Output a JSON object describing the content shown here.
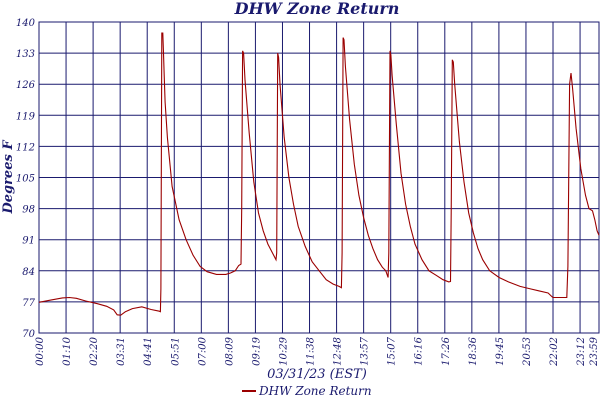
{
  "chart_data": {
    "type": "line",
    "title": "DHW Zone Return",
    "xlabel": "03/31/23 (EST)",
    "ylabel": "Degrees F",
    "ylim": [
      70,
      140
    ],
    "yticks": [
      70,
      77,
      84,
      91,
      98,
      105,
      112,
      119,
      126,
      133,
      140
    ],
    "x_tick_labels": [
      "00:00",
      "01:10",
      "02:20",
      "03:31",
      "04:41",
      "05:51",
      "07:00",
      "08:09",
      "09:19",
      "10:29",
      "11:38",
      "12:48",
      "13:57",
      "15:07",
      "16:16",
      "17:26",
      "18:36",
      "19:45",
      "20:53",
      "22:02",
      "23:12",
      "23:59"
    ],
    "xlim_hours": [
      0,
      23.98
    ],
    "grid": true,
    "legend_position": "bottom-center",
    "series": [
      {
        "name": "DHW Zone Return",
        "color": "#9b0000",
        "points": [
          [
            0.0,
            76.9
          ],
          [
            0.5,
            77.4
          ],
          [
            1.0,
            77.9
          ],
          [
            1.3,
            78.0
          ],
          [
            1.6,
            77.8
          ],
          [
            2.0,
            77.2
          ],
          [
            2.5,
            76.6
          ],
          [
            2.9,
            76.0
          ],
          [
            3.2,
            75.2
          ],
          [
            3.35,
            74.1
          ],
          [
            3.5,
            74.0
          ],
          [
            3.7,
            74.8
          ],
          [
            4.0,
            75.5
          ],
          [
            4.4,
            75.9
          ],
          [
            4.8,
            75.3
          ],
          [
            5.15,
            74.9
          ],
          [
            5.2,
            74.8
          ],
          [
            5.22,
            80.0
          ],
          [
            5.26,
            137.5
          ],
          [
            5.3,
            137.5
          ],
          [
            5.33,
            133.0
          ],
          [
            5.36,
            128.0
          ],
          [
            5.4,
            122.0
          ],
          [
            5.5,
            114.0
          ],
          [
            5.7,
            103.0
          ],
          [
            6.0,
            95.5
          ],
          [
            6.3,
            91.0
          ],
          [
            6.6,
            87.5
          ],
          [
            6.9,
            85.0
          ],
          [
            7.2,
            83.8
          ],
          [
            7.6,
            83.2
          ],
          [
            8.0,
            83.2
          ],
          [
            8.2,
            83.5
          ],
          [
            8.4,
            84.0
          ],
          [
            8.55,
            85.2
          ],
          [
            8.65,
            85.5
          ],
          [
            8.68,
            98.0
          ],
          [
            8.72,
            133.5
          ],
          [
            8.76,
            133.0
          ],
          [
            8.82,
            127.0
          ],
          [
            9.0,
            115.0
          ],
          [
            9.2,
            104.0
          ],
          [
            9.4,
            97.0
          ],
          [
            9.6,
            93.0
          ],
          [
            9.8,
            90.0
          ],
          [
            10.0,
            88.0
          ],
          [
            10.15,
            86.5
          ],
          [
            10.18,
            88.0
          ],
          [
            10.22,
            133.0
          ],
          [
            10.26,
            132.0
          ],
          [
            10.32,
            126.0
          ],
          [
            10.5,
            114.0
          ],
          [
            10.7,
            105.0
          ],
          [
            10.9,
            99.0
          ],
          [
            11.1,
            94.0
          ],
          [
            11.4,
            89.5
          ],
          [
            11.7,
            86.0
          ],
          [
            12.0,
            84.0
          ],
          [
            12.3,
            82.0
          ],
          [
            12.6,
            81.0
          ],
          [
            12.85,
            80.5
          ],
          [
            12.95,
            80.2
          ],
          [
            12.98,
            88.0
          ],
          [
            13.02,
            136.5
          ],
          [
            13.06,
            136.0
          ],
          [
            13.12,
            130.0
          ],
          [
            13.3,
            118.0
          ],
          [
            13.5,
            108.0
          ],
          [
            13.7,
            101.0
          ],
          [
            13.9,
            96.0
          ],
          [
            14.1,
            92.0
          ],
          [
            14.3,
            89.0
          ],
          [
            14.5,
            86.5
          ],
          [
            14.7,
            84.8
          ],
          [
            14.85,
            84.0
          ],
          [
            14.95,
            82.5
          ],
          [
            14.98,
            88.0
          ],
          [
            15.03,
            133.5
          ],
          [
            15.07,
            132.5
          ],
          [
            15.12,
            128.0
          ],
          [
            15.3,
            117.0
          ],
          [
            15.5,
            106.0
          ],
          [
            15.7,
            99.0
          ],
          [
            15.9,
            94.0
          ],
          [
            16.1,
            90.0
          ],
          [
            16.4,
            86.5
          ],
          [
            16.7,
            84.0
          ],
          [
            17.0,
            83.0
          ],
          [
            17.3,
            82.0
          ],
          [
            17.55,
            81.5
          ],
          [
            17.62,
            81.6
          ],
          [
            17.65,
            97.0
          ],
          [
            17.7,
            131.5
          ],
          [
            17.74,
            131.0
          ],
          [
            17.8,
            126.0
          ],
          [
            18.0,
            113.0
          ],
          [
            18.2,
            104.0
          ],
          [
            18.4,
            97.0
          ],
          [
            18.6,
            92.5
          ],
          [
            18.8,
            89.0
          ],
          [
            19.0,
            86.5
          ],
          [
            19.3,
            84.0
          ],
          [
            19.7,
            82.5
          ],
          [
            20.1,
            81.5
          ],
          [
            20.6,
            80.5
          ],
          [
            21.0,
            80.0
          ],
          [
            21.4,
            79.5
          ],
          [
            21.8,
            79.0
          ],
          [
            22.0,
            78.0
          ],
          [
            22.3,
            78.0
          ],
          [
            22.6,
            78.0
          ],
          [
            22.65,
            85.0
          ],
          [
            22.72,
            126.0
          ],
          [
            22.78,
            128.5
          ],
          [
            22.85,
            125.0
          ],
          [
            23.0,
            116.0
          ],
          [
            23.2,
            107.0
          ],
          [
            23.4,
            101.0
          ],
          [
            23.55,
            98.0
          ],
          [
            23.7,
            97.5
          ],
          [
            23.8,
            95.5
          ],
          [
            23.9,
            93.0
          ],
          [
            23.98,
            92.0
          ]
        ]
      }
    ]
  }
}
